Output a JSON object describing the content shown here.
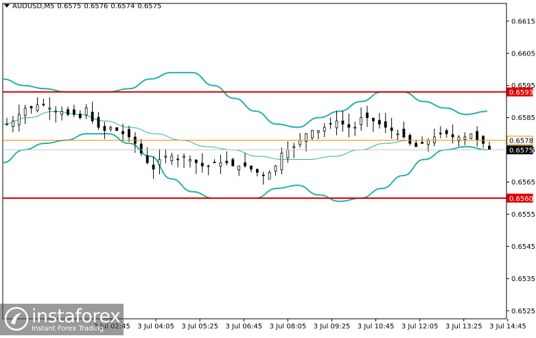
{
  "header": {
    "symbol": "AUDUSD,M5",
    "open": "0.6575",
    "high": "0.6576",
    "low": "0.6574",
    "close": "0.6575"
  },
  "watermark": {
    "name": "instaforex",
    "tagline": "Instant Forex Trading"
  },
  "colors": {
    "candle": "#000000",
    "bollinger": "#20b2aa",
    "level_line": "#e00000",
    "current_price_line": "#ff8c00",
    "price_tag_bg": "#000000"
  },
  "chart_data": {
    "type": "candlestick",
    "y_range": [
      0.65225,
      0.66205
    ],
    "y_ticks": [
      "0.6615",
      "0.6605",
      "0.6595",
      "0.6585",
      "0.6575",
      "0.6565",
      "0.6555",
      "0.6545",
      "0.6535",
      "0.6525"
    ],
    "x_ticks": [
      "3 Jul 02:45",
      "3 Jul 04:05",
      "3 Jul 05:25",
      "3 Jul 06:45",
      "3 Jul 08:05",
      "3 Jul 09:25",
      "3 Jul 10:45",
      "3 Jul 12:05",
      "3 Jul 13:25",
      "3 Jul 14:45"
    ],
    "levels": [
      {
        "label": "0.6593",
        "value": 0.6593,
        "kind": "red-level"
      },
      {
        "label": "0.6560",
        "value": 0.656,
        "kind": "red-level"
      },
      {
        "label": "0.6578",
        "value": 0.6578,
        "kind": "orange-level"
      },
      {
        "label": "0.6575",
        "value": 0.6575,
        "kind": "current-price"
      }
    ],
    "close_series": [
      0.6583,
      0.6584,
      0.6586,
      0.6588,
      0.6588,
      0.6589,
      0.6589,
      0.6588,
      0.6587,
      0.6587,
      0.6586,
      0.6586,
      0.6585,
      0.6588,
      0.6584,
      0.6582,
      0.6581,
      0.6582,
      0.6581,
      0.658,
      0.6579,
      0.6577,
      0.6574,
      0.6571,
      0.6569,
      0.6572,
      0.6573,
      0.6573,
      0.6572,
      0.6573,
      0.6572,
      0.6571,
      0.657,
      0.657,
      0.6571,
      0.6571,
      0.6571,
      0.657,
      0.657,
      0.657,
      0.6569,
      0.6568,
      0.6567,
      0.6568,
      0.657,
      0.6574,
      0.6575,
      0.6576,
      0.6578,
      0.658,
      0.6581,
      0.6581,
      0.6582,
      0.6583,
      0.6584,
      0.6583,
      0.6582,
      0.6582,
      0.6585,
      0.6585,
      0.6584,
      0.6583,
      0.6582,
      0.6581,
      0.658,
      0.6579,
      0.6577,
      0.6576,
      0.6577,
      0.6578,
      0.6579,
      0.658,
      0.658,
      0.6579,
      0.6579,
      0.6579,
      0.658,
      0.6578,
      0.6577,
      0.6575
    ],
    "bollinger_upper": [
      0.6597,
      0.6595,
      0.6594,
      0.6593,
      0.6593,
      0.6593,
      0.6594,
      0.6597,
      0.6599,
      0.6599,
      0.6595,
      0.6591,
      0.6587,
      0.6583,
      0.6582,
      0.6585,
      0.6587,
      0.659,
      0.6593,
      0.6593,
      0.659,
      0.6588,
      0.6586,
      0.6587
    ],
    "bollinger_middle": [
      0.6583,
      0.6585,
      0.6587,
      0.6586,
      0.6584,
      0.6582,
      0.658,
      0.6578,
      0.6576,
      0.6575,
      0.6573,
      0.6572,
      0.6572,
      0.6573,
      0.6575,
      0.6577,
      0.6578,
      0.6578,
      0.6578,
      0.6578
    ],
    "bollinger_lower": [
      0.6571,
      0.6575,
      0.6577,
      0.6578,
      0.658,
      0.658,
      0.6577,
      0.6573,
      0.6566,
      0.6562,
      0.656,
      0.656,
      0.656,
      0.6563,
      0.6564,
      0.6561,
      0.6559,
      0.656,
      0.6563,
      0.6567,
      0.6572,
      0.6575,
      0.6576,
      0.6575
    ]
  }
}
